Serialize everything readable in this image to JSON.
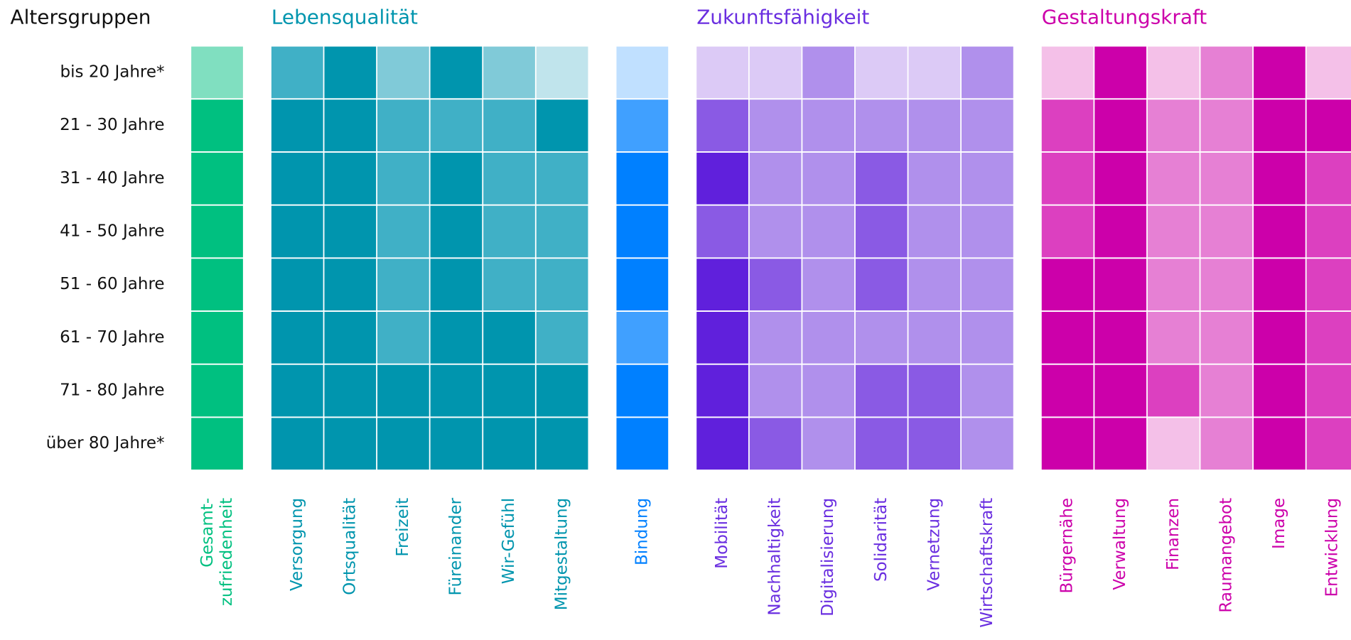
{
  "chart_data": {
    "type": "heatmap",
    "row_title": "Altersgruppen",
    "rows": [
      "bis 20 Jahre*",
      "21 - 30 Jahre",
      "31 - 40 Jahre",
      "41 - 50 Jahre",
      "51 - 60 Jahre",
      "61 - 70 Jahre",
      "71 - 80 Jahre",
      "über 80 Jahre*"
    ],
    "groups": [
      {
        "color": "#00c080",
        "palette": [
          "#c0f0e0",
          "#80dfc0",
          "#40d0a0",
          "#00c080"
        ],
        "columns": [
          [
            "Gesamt-",
            "zufriedenheit"
          ]
        ],
        "values": [
          [
            2
          ],
          [
            4
          ],
          [
            4
          ],
          [
            4
          ],
          [
            4
          ],
          [
            4
          ],
          [
            4
          ],
          [
            4
          ]
        ]
      },
      {
        "title": "Lebensqualität",
        "color": "#0095ae",
        "palette": [
          "#c0e4ec",
          "#80cad8",
          "#40b0c6",
          "#0095ae"
        ],
        "columns": [
          "Versorgung",
          "Ortsqualität",
          "Freizeit",
          "Füreinander",
          "Wir-Gefühl",
          "Mitgestaltung"
        ],
        "values": [
          [
            3,
            4,
            2,
            4,
            2,
            1
          ],
          [
            4,
            4,
            3,
            3,
            3,
            4
          ],
          [
            4,
            4,
            3,
            4,
            3,
            3
          ],
          [
            4,
            4,
            3,
            4,
            3,
            3
          ],
          [
            4,
            4,
            3,
            4,
            3,
            3
          ],
          [
            4,
            4,
            3,
            4,
            4,
            3
          ],
          [
            4,
            4,
            4,
            4,
            4,
            4
          ],
          [
            4,
            4,
            4,
            4,
            4,
            4
          ]
        ]
      },
      {
        "color": "#0080ff",
        "palette": [
          "#c0e0ff",
          "#80c0ff",
          "#40a0ff",
          "#0080ff"
        ],
        "columns": [
          "Bindung"
        ],
        "values": [
          [
            1
          ],
          [
            3
          ],
          [
            4
          ],
          [
            4
          ],
          [
            4
          ],
          [
            3
          ],
          [
            4
          ],
          [
            4
          ]
        ]
      },
      {
        "title": "Zukunftsfähigkeit",
        "color": "#6a2ee0",
        "palette": [
          "#dccaf6",
          "#b090ec",
          "#8a5ae4",
          "#6020dc"
        ],
        "columns": [
          "Mobilität",
          "Nachhaltigkeit",
          "Digitalisierung",
          "Solidarität",
          "Vernetzung",
          "Wirtschaftskraft"
        ],
        "values": [
          [
            1,
            1,
            2,
            1,
            1,
            2
          ],
          [
            3,
            2,
            2,
            2,
            2,
            2
          ],
          [
            4,
            2,
            2,
            3,
            2,
            2
          ],
          [
            3,
            2,
            2,
            3,
            2,
            2
          ],
          [
            4,
            3,
            2,
            3,
            2,
            2
          ],
          [
            4,
            2,
            2,
            2,
            2,
            2
          ],
          [
            4,
            2,
            2,
            3,
            3,
            2
          ],
          [
            4,
            3,
            2,
            3,
            3,
            2
          ]
        ]
      },
      {
        "title": "Gestaltungskraft",
        "color": "#cc00aa",
        "palette": [
          "#f4c0e8",
          "#e680d4",
          "#dc40c0",
          "#cc00aa"
        ],
        "columns": [
          "Bürgernähe",
          "Verwaltung",
          "Finanzen",
          "Raumangebot",
          "Image",
          "Entwicklung"
        ],
        "values": [
          [
            1,
            4,
            1,
            2,
            4,
            1
          ],
          [
            3,
            4,
            2,
            2,
            4,
            4
          ],
          [
            3,
            4,
            2,
            2,
            4,
            3
          ],
          [
            3,
            4,
            2,
            2,
            4,
            3
          ],
          [
            4,
            4,
            2,
            2,
            4,
            3
          ],
          [
            4,
            4,
            2,
            2,
            4,
            3
          ],
          [
            4,
            4,
            3,
            2,
            4,
            3
          ],
          [
            4,
            4,
            1,
            2,
            4,
            3
          ]
        ]
      }
    ]
  }
}
